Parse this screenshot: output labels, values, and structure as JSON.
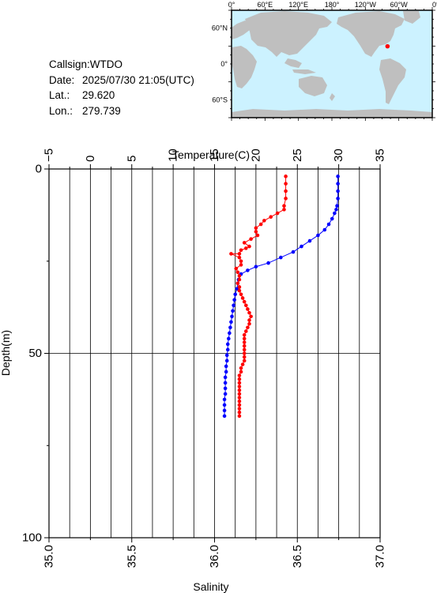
{
  "info": {
    "callsign_label": "Callsign:",
    "callsign": "WTDO",
    "date_label": "Date:",
    "date": "2025/07/30 21:05(UTC)",
    "lat_label": "Lat.:",
    "lat": "29.620",
    "lon_label": "Lon.:",
    "lon": "279.739"
  },
  "map": {
    "lon_labels": [
      "0°",
      "60°E",
      "120°E",
      "180°",
      "120°W",
      "60°W",
      "0°"
    ],
    "lat_labels": [
      "60°N",
      "0°",
      "60°S"
    ],
    "ocean_color": "#ccf2ff",
    "land_color": "#bfbfbf",
    "marker_color": "#ff0000",
    "station": {
      "lat": 29.62,
      "lon": 279.739
    }
  },
  "chart_data": {
    "type": "line",
    "ylabel": "Depth(m)",
    "ylim": [
      100,
      0
    ],
    "y_ticks": [
      0,
      50,
      100
    ],
    "top_axis": {
      "label": "Temperature(C)",
      "range": [
        -5,
        35
      ],
      "ticks": [
        -5,
        0,
        5,
        10,
        15,
        20,
        25,
        30,
        35
      ],
      "tick_labels": [
        "−5",
        "0",
        "5",
        "10",
        "15",
        "20",
        "25",
        "30",
        "35"
      ]
    },
    "bottom_axis": {
      "label": "Salinity",
      "range": [
        35.0,
        37.0
      ],
      "ticks": [
        35.0,
        35.5,
        36.0,
        36.5,
        37.0
      ],
      "tick_labels": [
        "35.0",
        "35.5",
        "36.0",
        "36.5",
        "37.0"
      ]
    },
    "grid": true,
    "series": [
      {
        "axis": "top",
        "color": "#0000ff",
        "points": [
          [
            29.9,
            2
          ],
          [
            29.9,
            4
          ],
          [
            29.9,
            6
          ],
          [
            29.9,
            8
          ],
          [
            29.8,
            10
          ],
          [
            29.7,
            11
          ],
          [
            29.5,
            12
          ],
          [
            29.2,
            13.5
          ],
          [
            28.8,
            15
          ],
          [
            28.3,
            16.5
          ],
          [
            27.5,
            18
          ],
          [
            26.5,
            19.5
          ],
          [
            25.5,
            21
          ],
          [
            24.5,
            22.5
          ],
          [
            23.0,
            24
          ],
          [
            21.5,
            25.5
          ],
          [
            20.0,
            26.5
          ],
          [
            19.0,
            27.5
          ],
          [
            18.2,
            28.5
          ],
          [
            17.9,
            30
          ],
          [
            17.8,
            31
          ],
          [
            17.7,
            32.5
          ],
          [
            17.5,
            34
          ],
          [
            17.4,
            35.5
          ],
          [
            17.3,
            37
          ],
          [
            17.2,
            38.5
          ],
          [
            17.1,
            40
          ],
          [
            17.0,
            41.5
          ],
          [
            16.9,
            43
          ],
          [
            16.8,
            44.5
          ],
          [
            16.7,
            46
          ],
          [
            16.6,
            47.5
          ],
          [
            16.6,
            49
          ],
          [
            16.5,
            50.5
          ],
          [
            16.5,
            52
          ],
          [
            16.4,
            53.5
          ],
          [
            16.4,
            55
          ],
          [
            16.3,
            56.5
          ],
          [
            16.3,
            58
          ],
          [
            16.3,
            59.5
          ],
          [
            16.3,
            61
          ],
          [
            16.2,
            62.5
          ],
          [
            16.2,
            64
          ],
          [
            16.2,
            65.5
          ],
          [
            16.2,
            67
          ]
        ]
      },
      {
        "axis": "bottom",
        "color": "#ff0000",
        "points": [
          [
            36.43,
            2
          ],
          [
            36.43,
            4
          ],
          [
            36.43,
            6
          ],
          [
            36.43,
            8
          ],
          [
            36.42,
            10
          ],
          [
            36.42,
            11
          ],
          [
            36.38,
            12
          ],
          [
            36.34,
            13
          ],
          [
            36.3,
            14
          ],
          [
            36.28,
            15
          ],
          [
            36.25,
            16
          ],
          [
            36.25,
            17
          ],
          [
            36.26,
            18
          ],
          [
            36.22,
            19
          ],
          [
            36.18,
            20
          ],
          [
            36.21,
            21
          ],
          [
            36.19,
            21.5
          ],
          [
            36.16,
            22
          ],
          [
            36.15,
            23
          ],
          [
            36.1,
            23
          ],
          [
            36.15,
            24
          ],
          [
            36.16,
            25
          ],
          [
            36.16,
            26
          ],
          [
            36.13,
            27
          ],
          [
            36.14,
            28
          ],
          [
            36.15,
            29
          ],
          [
            36.15,
            30
          ],
          [
            36.14,
            31
          ],
          [
            36.15,
            32
          ],
          [
            36.15,
            33
          ],
          [
            36.16,
            34
          ],
          [
            36.17,
            35
          ],
          [
            36.18,
            36
          ],
          [
            36.19,
            37
          ],
          [
            36.2,
            38
          ],
          [
            36.21,
            39
          ],
          [
            36.22,
            40
          ],
          [
            36.21,
            41
          ],
          [
            36.21,
            42
          ],
          [
            36.2,
            43
          ],
          [
            36.19,
            44
          ],
          [
            36.18,
            45
          ],
          [
            36.18,
            46
          ],
          [
            36.18,
            47
          ],
          [
            36.18,
            48
          ],
          [
            36.18,
            49
          ],
          [
            36.18,
            50
          ],
          [
            36.18,
            51
          ],
          [
            36.18,
            52
          ],
          [
            36.17,
            53
          ],
          [
            36.16,
            54
          ],
          [
            36.16,
            55
          ],
          [
            36.15,
            56
          ],
          [
            36.15,
            57
          ],
          [
            36.15,
            58
          ],
          [
            36.15,
            59
          ],
          [
            36.15,
            60
          ],
          [
            36.15,
            61
          ],
          [
            36.15,
            62
          ],
          [
            36.15,
            63
          ],
          [
            36.15,
            64
          ],
          [
            36.15,
            65
          ],
          [
            36.15,
            66
          ],
          [
            36.15,
            67
          ]
        ]
      }
    ]
  }
}
